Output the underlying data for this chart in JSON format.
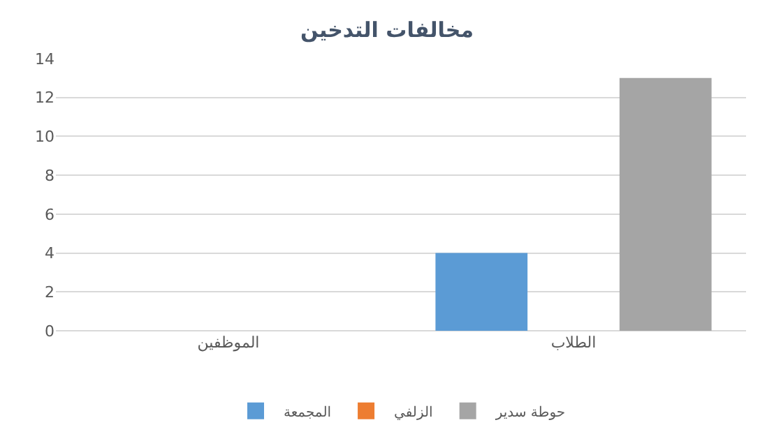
{
  "chart_data": {
    "type": "bar",
    "title": "مخالفات التدخين",
    "categories": [
      "الموظفين",
      "الطلاب"
    ],
    "series": [
      {
        "name": "المجمعة",
        "color": "#5b9bd5",
        "values": [
          0,
          4
        ]
      },
      {
        "name": "الزلفي",
        "color": "#ed7d31",
        "values": [
          0,
          0
        ]
      },
      {
        "name": "حوطة سدير",
        "color": "#a5a5a5",
        "values": [
          0,
          13
        ]
      }
    ],
    "ylim": [
      0,
      14
    ],
    "yticks": [
      0,
      2,
      4,
      6,
      8,
      10,
      12,
      14
    ],
    "grid": "y",
    "legend": "bottom"
  }
}
